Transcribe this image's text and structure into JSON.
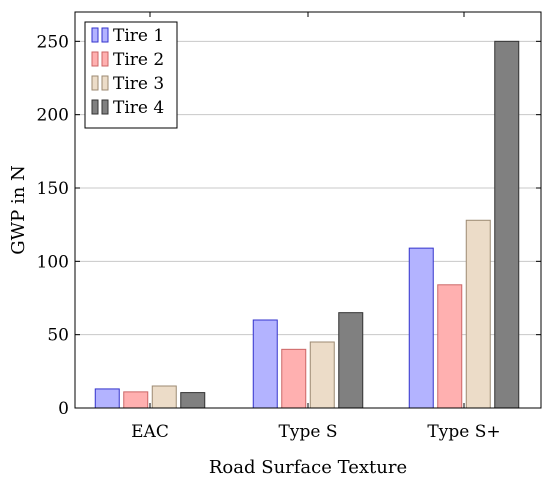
{
  "chart_data": {
    "type": "bar",
    "categories": [
      "EAC",
      "Type S",
      "Type S+"
    ],
    "series": [
      {
        "name": "Tire 1",
        "values": [
          13,
          60,
          109
        ],
        "color": "#b3b3ff",
        "stroke": "#3333cc"
      },
      {
        "name": "Tire 2",
        "values": [
          11,
          40,
          84
        ],
        "color": "#ffb0b0",
        "stroke": "#cc6666"
      },
      {
        "name": "Tire 3",
        "values": [
          15,
          45,
          128
        ],
        "color": "#ecdcc8",
        "stroke": "#9c8a72"
      },
      {
        "name": "Tire 4",
        "values": [
          10.5,
          65,
          250
        ],
        "color": "#808080",
        "stroke": "#333333"
      }
    ],
    "xlabel": "Road Surface Texture",
    "ylabel": "GWP in N",
    "ylim": [
      0,
      270
    ],
    "yticks": [
      0,
      50,
      100,
      150,
      200,
      250
    ],
    "grid": true,
    "legend_position": "top-left"
  }
}
